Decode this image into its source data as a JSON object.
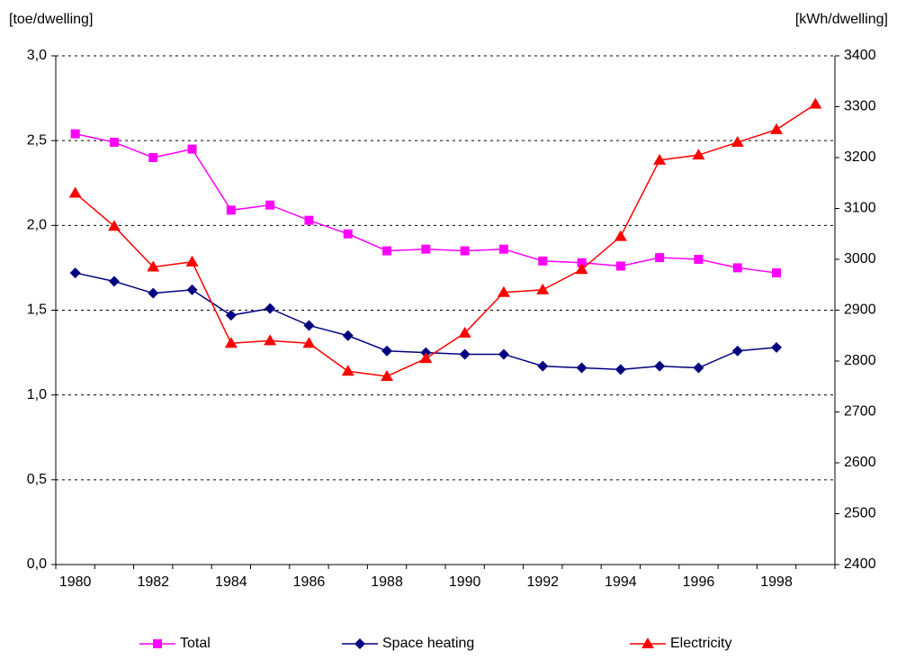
{
  "chart_data": {
    "type": "line",
    "y_label": "[toe/dwelling]",
    "y2_label": "[kWh/dwelling]",
    "categories": [
      "1980",
      null,
      "1982",
      null,
      "1984",
      null,
      "1986",
      null,
      "1988",
      null,
      "1990",
      null,
      "1992",
      null,
      "1994",
      null,
      "1996",
      null,
      "1998",
      null
    ],
    "ylim": [
      0,
      3
    ],
    "yticks": [
      {
        "value": 0,
        "label": "0,0"
      },
      {
        "value": 0.5,
        "label": "0,5"
      },
      {
        "value": 1,
        "label": "1,0"
      },
      {
        "value": 1.5,
        "label": "1,5"
      },
      {
        "value": 2,
        "label": "2,0"
      },
      {
        "value": 2.5,
        "label": "2,5"
      },
      {
        "value": 3,
        "label": "3,0"
      }
    ],
    "y2lim": [
      2400,
      3400
    ],
    "y2ticks": [
      2400,
      2500,
      2600,
      2700,
      2800,
      2900,
      3000,
      3100,
      3200,
      3300,
      3400
    ],
    "grid": true,
    "legend": "bottom",
    "series": [
      {
        "name": "Total",
        "color": "#ff00ff",
        "marker": "square",
        "values": [
          2.54,
          2.49,
          2.4,
          2.45,
          2.09,
          2.12,
          2.03,
          1.95,
          1.85,
          1.86,
          1.85,
          1.86,
          1.79,
          1.78,
          1.76,
          1.81,
          1.8,
          1.75,
          1.72,
          null
        ]
      },
      {
        "name": "Space heating",
        "color": "#000080",
        "marker": "diamond",
        "values": [
          1.72,
          1.67,
          1.6,
          1.62,
          1.47,
          1.51,
          1.41,
          1.35,
          1.26,
          1.25,
          1.24,
          1.24,
          1.17,
          1.16,
          1.15,
          1.17,
          1.16,
          1.26,
          1.28,
          null
        ]
      },
      {
        "name": "Electricity",
        "color": "#ff0000",
        "marker": "triangle",
        "axis": "y2",
        "values": [
          3130,
          3065,
          2985,
          2995,
          2835,
          2840,
          2835,
          2780,
          2770,
          2805,
          2855,
          2935,
          2940,
          2980,
          3045,
          3195,
          3205,
          3230,
          3255,
          3305
        ]
      }
    ]
  }
}
